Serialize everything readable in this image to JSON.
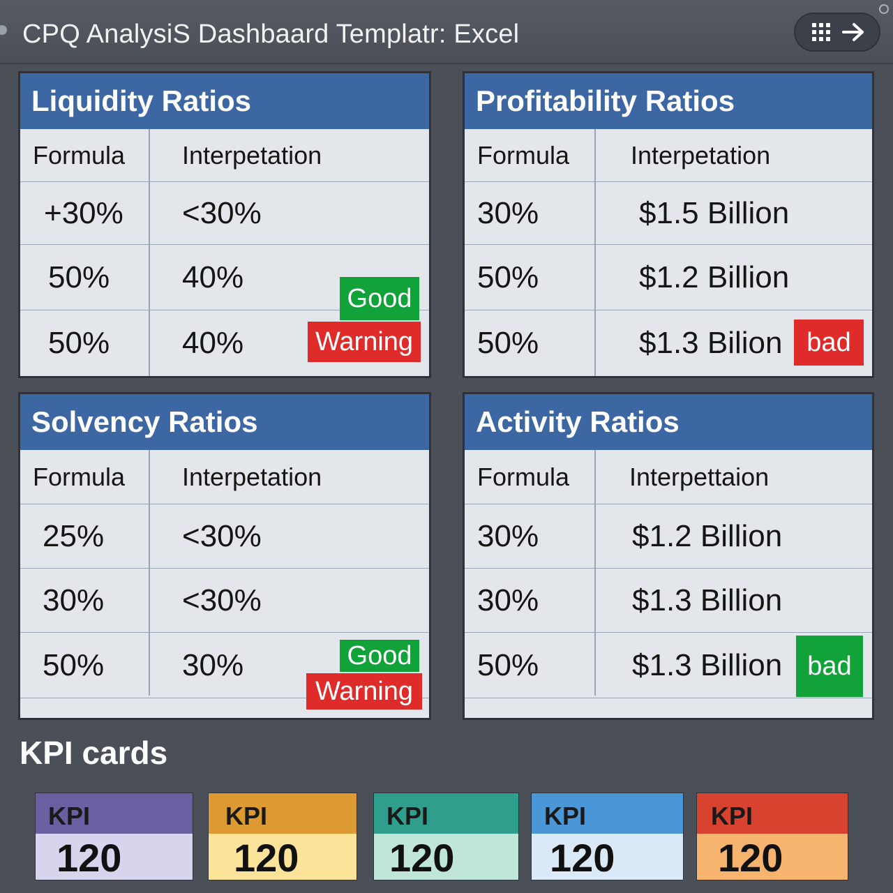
{
  "window": {
    "title": "CPQ AnalysiS Dashbaard Templatr: Excel",
    "controls": [
      {
        "icon": "grid-icon"
      },
      {
        "icon": "arrow-right-icon"
      }
    ]
  },
  "panels": {
    "liquidity": {
      "title": "Liquidity Ratios",
      "col1": "Formula",
      "col2": "Interpetation",
      "rows": [
        {
          "formula": "+30%",
          "interpretation": "<30%"
        },
        {
          "formula": "50%",
          "interpretation": "40%"
        },
        {
          "formula": "50%",
          "interpretation": "40%"
        }
      ],
      "badges": {
        "good": "Good",
        "warning": "Warning"
      }
    },
    "profitability": {
      "title": "Profitability Ratios",
      "col1": "Formula",
      "col2": "Interpetation",
      "rows": [
        {
          "formula": "30%",
          "interpretation": "$1.5 Billion"
        },
        {
          "formula": "50%",
          "interpretation": "$1.2 Billion"
        },
        {
          "formula": "50%",
          "interpretation": "$1.3 Bilion"
        }
      ],
      "badges": {
        "bad": "bad"
      }
    },
    "solvency": {
      "title": "Solvency Ratios",
      "col1": "Formula",
      "col2": "Interpetation",
      "rows": [
        {
          "formula": "25%",
          "interpretation": "<30%"
        },
        {
          "formula": "30%",
          "interpretation": "<30%"
        },
        {
          "formula": "50%",
          "interpretation": "30%"
        }
      ],
      "badges": {
        "good": "Good",
        "warning": "Warning"
      }
    },
    "activity": {
      "title": "Activity Ratios",
      "col1": "Formula",
      "col2": "Interpettaion",
      "rows": [
        {
          "formula": "30%",
          "interpretation": "$1.2 Billion"
        },
        {
          "formula": "30%",
          "interpretation": "$1.3 Billion"
        },
        {
          "formula": "50%",
          "interpretation": "$1.3 Billion"
        }
      ],
      "badges": {
        "bad": "bad"
      }
    }
  },
  "kpi_section": {
    "title": "KPI cards",
    "cards": [
      {
        "label": "KPI",
        "value": "120",
        "top_color": "#6a5fa0",
        "bottom_color": "#d9d4ee"
      },
      {
        "label": "KPI",
        "value": "120",
        "top_color": "#dd9a32",
        "bottom_color": "#fbe39a"
      },
      {
        "label": "KPI",
        "value": "120",
        "top_color": "#2f9e8c",
        "bottom_color": "#bfe6d9"
      },
      {
        "label": "KPI",
        "value": "120",
        "top_color": "#4a96d6",
        "bottom_color": "#dbe8f7"
      },
      {
        "label": "KPI",
        "value": "120",
        "top_color": "#d8432f",
        "bottom_color": "#f7b46e"
      }
    ]
  },
  "colors": {
    "panel_header": "#3d67a2",
    "good": "#12a23a",
    "warning": "#e02b2b"
  }
}
